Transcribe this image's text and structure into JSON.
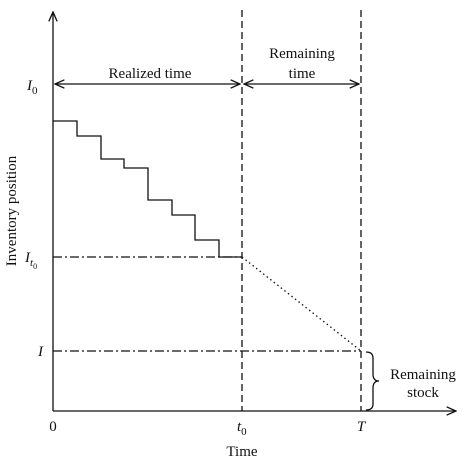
{
  "axes": {
    "y_label": "Inventory position",
    "x_label": "Time"
  },
  "levels": [
    {
      "symbol": "I",
      "subscript": "0"
    },
    {
      "symbol": "I",
      "subscript": "t",
      "subsubscript": "0"
    },
    {
      "symbol": "I"
    }
  ],
  "times": [
    {
      "symbol": "0"
    },
    {
      "symbol": "t",
      "subscript": "0"
    },
    {
      "symbol": "T"
    }
  ],
  "intervals": {
    "realized": "Realized time",
    "remaining": [
      "Remaining",
      "time"
    ],
    "stock": [
      "Remaining",
      "stock"
    ]
  }
}
